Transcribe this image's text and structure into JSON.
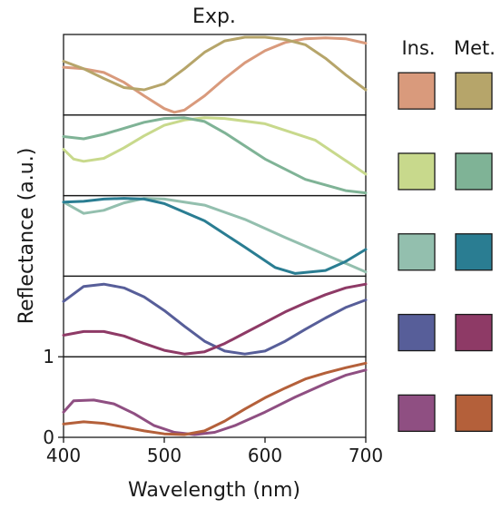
{
  "chart_data": {
    "type": "line",
    "title": "Exp.",
    "xlabel": "Wavelength (nm)",
    "ylabel": "Reflectance (a.u.)",
    "xlim": [
      400,
      700
    ],
    "x_ticks": [
      "400",
      "500",
      "600",
      "700"
    ],
    "y_tick_labels": [
      "0",
      "1"
    ],
    "legend_headers": [
      "Ins.",
      "Met."
    ],
    "panels": [
      {
        "series": [
          {
            "group": "Ins.",
            "color": "#d99a7c",
            "points": [
              [
                400,
                0.6
              ],
              [
                420,
                0.58
              ],
              [
                440,
                0.53
              ],
              [
                460,
                0.4
              ],
              [
                480,
                0.22
              ],
              [
                500,
                0.05
              ],
              [
                510,
                0.0
              ],
              [
                520,
                0.03
              ],
              [
                540,
                0.22
              ],
              [
                560,
                0.45
              ],
              [
                580,
                0.66
              ],
              [
                600,
                0.82
              ],
              [
                620,
                0.93
              ],
              [
                640,
                0.98
              ],
              [
                660,
                0.99
              ],
              [
                680,
                0.98
              ],
              [
                700,
                0.92
              ]
            ]
          },
          {
            "group": "Met.",
            "color": "#b6a56a",
            "points": [
              [
                400,
                0.68
              ],
              [
                420,
                0.58
              ],
              [
                440,
                0.45
              ],
              [
                460,
                0.33
              ],
              [
                480,
                0.3
              ],
              [
                500,
                0.38
              ],
              [
                520,
                0.58
              ],
              [
                540,
                0.8
              ],
              [
                560,
                0.95
              ],
              [
                580,
                1.0
              ],
              [
                600,
                1.0
              ],
              [
                620,
                0.97
              ],
              [
                640,
                0.9
              ],
              [
                660,
                0.72
              ],
              [
                680,
                0.5
              ],
              [
                700,
                0.3
              ]
            ]
          }
        ]
      },
      {
        "series": [
          {
            "group": "Ins.",
            "color": "#c8d98c",
            "points": [
              [
                400,
                0.58
              ],
              [
                410,
                0.45
              ],
              [
                420,
                0.42
              ],
              [
                440,
                0.46
              ],
              [
                460,
                0.6
              ],
              [
                480,
                0.76
              ],
              [
                500,
                0.9
              ],
              [
                520,
                0.97
              ],
              [
                540,
                1.0
              ],
              [
                560,
                0.99
              ],
              [
                600,
                0.92
              ],
              [
                650,
                0.7
              ],
              [
                700,
                0.25
              ]
            ]
          },
          {
            "group": "Met.",
            "color": "#7fb396",
            "points": [
              [
                400,
                0.75
              ],
              [
                420,
                0.72
              ],
              [
                440,
                0.78
              ],
              [
                460,
                0.86
              ],
              [
                480,
                0.94
              ],
              [
                500,
                0.99
              ],
              [
                520,
                1.0
              ],
              [
                540,
                0.95
              ],
              [
                560,
                0.8
              ],
              [
                600,
                0.45
              ],
              [
                640,
                0.18
              ],
              [
                680,
                0.03
              ],
              [
                700,
                0.0
              ]
            ]
          }
        ]
      },
      {
        "series": [
          {
            "group": "Ins.",
            "color": "#93bfae",
            "points": [
              [
                400,
                0.95
              ],
              [
                420,
                0.8
              ],
              [
                440,
                0.84
              ],
              [
                460,
                0.94
              ],
              [
                480,
                1.0
              ],
              [
                500,
                0.99
              ],
              [
                540,
                0.91
              ],
              [
                580,
                0.72
              ],
              [
                620,
                0.48
              ],
              [
                660,
                0.25
              ],
              [
                700,
                0.02
              ]
            ]
          },
          {
            "group": "Met.",
            "color": "#2a7d92",
            "points": [
              [
                400,
                0.95
              ],
              [
                420,
                0.96
              ],
              [
                440,
                0.99
              ],
              [
                460,
                1.0
              ],
              [
                480,
                0.99
              ],
              [
                500,
                0.93
              ],
              [
                540,
                0.7
              ],
              [
                580,
                0.35
              ],
              [
                610,
                0.08
              ],
              [
                630,
                0.0
              ],
              [
                660,
                0.04
              ],
              [
                680,
                0.16
              ],
              [
                700,
                0.32
              ]
            ]
          }
        ]
      },
      {
        "series": [
          {
            "group": "Ins.",
            "color": "#575e99",
            "points": [
              [
                400,
                0.7
              ],
              [
                420,
                0.9
              ],
              [
                440,
                0.93
              ],
              [
                460,
                0.88
              ],
              [
                480,
                0.76
              ],
              [
                500,
                0.58
              ],
              [
                520,
                0.37
              ],
              [
                540,
                0.17
              ],
              [
                560,
                0.04
              ],
              [
                580,
                0.0
              ],
              [
                600,
                0.04
              ],
              [
                620,
                0.17
              ],
              [
                640,
                0.33
              ],
              [
                660,
                0.48
              ],
              [
                680,
                0.62
              ],
              [
                700,
                0.72
              ]
            ]
          },
          {
            "group": "Met.",
            "color": "#8e3a66",
            "points": [
              [
                400,
                0.25
              ],
              [
                420,
                0.3
              ],
              [
                440,
                0.3
              ],
              [
                460,
                0.24
              ],
              [
                480,
                0.14
              ],
              [
                500,
                0.05
              ],
              [
                520,
                0.0
              ],
              [
                540,
                0.03
              ],
              [
                560,
                0.14
              ],
              [
                580,
                0.28
              ],
              [
                600,
                0.42
              ],
              [
                620,
                0.56
              ],
              [
                640,
                0.68
              ],
              [
                660,
                0.79
              ],
              [
                680,
                0.88
              ],
              [
                700,
                0.93
              ]
            ]
          }
        ]
      },
      {
        "series": [
          {
            "group": "Ins.",
            "color": "#8f4f82",
            "points": [
              [
                400,
                0.3
              ],
              [
                410,
                0.45
              ],
              [
                430,
                0.46
              ],
              [
                450,
                0.41
              ],
              [
                470,
                0.28
              ],
              [
                490,
                0.12
              ],
              [
                510,
                0.03
              ],
              [
                530,
                0.0
              ],
              [
                550,
                0.03
              ],
              [
                570,
                0.12
              ],
              [
                600,
                0.3
              ],
              [
                630,
                0.5
              ],
              [
                660,
                0.68
              ],
              [
                680,
                0.79
              ],
              [
                700,
                0.86
              ]
            ]
          },
          {
            "group": "Met.",
            "color": "#b4603a",
            "points": [
              [
                400,
                0.14
              ],
              [
                420,
                0.17
              ],
              [
                440,
                0.15
              ],
              [
                460,
                0.1
              ],
              [
                480,
                0.05
              ],
              [
                500,
                0.01
              ],
              [
                520,
                0.0
              ],
              [
                540,
                0.05
              ],
              [
                560,
                0.18
              ],
              [
                580,
                0.34
              ],
              [
                600,
                0.49
              ],
              [
                620,
                0.62
              ],
              [
                640,
                0.74
              ],
              [
                660,
                0.82
              ],
              [
                680,
                0.89
              ],
              [
                700,
                0.95
              ]
            ]
          }
        ]
      }
    ],
    "legend_rows": [
      {
        "ins_color": "#d99a7c",
        "met_color": "#b6a56a"
      },
      {
        "ins_color": "#c8d98c",
        "met_color": "#7fb396"
      },
      {
        "ins_color": "#93bfae",
        "met_color": "#2a7d92"
      },
      {
        "ins_color": "#575e99",
        "met_color": "#8e3a66"
      },
      {
        "ins_color": "#8f4f82",
        "met_color": "#b4603a"
      }
    ]
  }
}
